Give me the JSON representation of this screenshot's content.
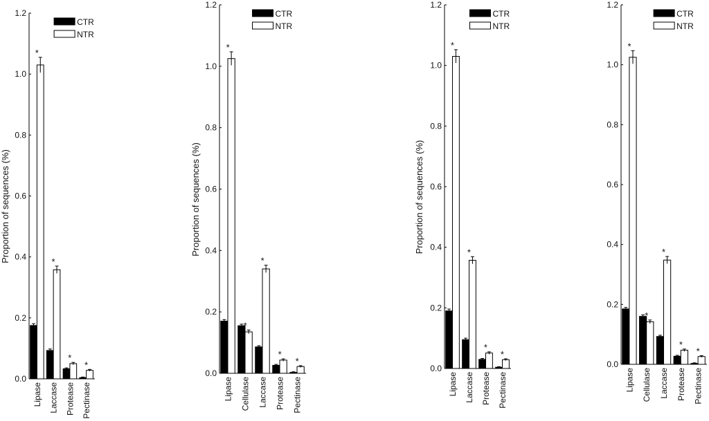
{
  "chart_data": [
    {
      "type": "bar",
      "ylabel": "Proportion of sequences (%)",
      "ylim": [
        0,
        1.2
      ],
      "yticks": [
        "0.0",
        "0.2",
        "0.4",
        "0.6",
        "0.8",
        "1.0",
        "1.2"
      ],
      "categories": [
        "Lipase",
        "Laccase",
        "Protease",
        "Pectinase"
      ],
      "series": [
        {
          "name": "CTR",
          "color": "#000000",
          "values": [
            0.175,
            0.093,
            0.033,
            0.004
          ],
          "errors": [
            0.006,
            0.005,
            0.003,
            0.002
          ]
        },
        {
          "name": "NTR",
          "color": "#ffffff",
          "values": [
            1.03,
            0.358,
            0.05,
            0.028
          ],
          "errors": [
            0.025,
            0.012,
            0.004,
            0.003
          ]
        }
      ],
      "significance": [
        "*",
        "*",
        "*",
        "*"
      ],
      "legend": "top-right"
    },
    {
      "type": "bar",
      "ylabel": "Proportion of sequences (%)",
      "ylim": [
        0,
        1.2
      ],
      "yticks": [
        "0.0",
        "0.2",
        "0.4",
        "0.6",
        "0.8",
        "1.0",
        "1.2"
      ],
      "categories": [
        "Lipase",
        "Cellulase",
        "Laccase",
        "Protease",
        "Pectinase"
      ],
      "series": [
        {
          "name": "CTR",
          "color": "#000000",
          "values": [
            0.17,
            0.155,
            0.086,
            0.026,
            0.003
          ],
          "errors": [
            0.005,
            0.005,
            0.004,
            0.003,
            0.002
          ]
        },
        {
          "name": "NTR",
          "color": "#ffffff",
          "values": [
            1.025,
            0.135,
            0.34,
            0.043,
            0.022
          ],
          "errors": [
            0.022,
            0.006,
            0.012,
            0.004,
            0.003
          ]
        }
      ],
      "significance": [
        "*",
        "*",
        "*",
        "*",
        "*"
      ],
      "legend": "top-right"
    },
    {
      "type": "bar",
      "ylabel": "Proportion of sequences (%)",
      "ylim": [
        0,
        1.2
      ],
      "yticks": [
        "0.0",
        "0.2",
        "0.4",
        "0.6",
        "0.8",
        "1.0",
        "1.2"
      ],
      "categories": [
        "Lipase",
        "Laccase",
        "Protease",
        "Pectinase"
      ],
      "series": [
        {
          "name": "CTR",
          "color": "#000000",
          "values": [
            0.19,
            0.095,
            0.03,
            0.004
          ],
          "errors": [
            0.006,
            0.005,
            0.003,
            0.002
          ]
        },
        {
          "name": "NTR",
          "color": "#ffffff",
          "values": [
            1.03,
            0.357,
            0.051,
            0.029
          ],
          "errors": [
            0.022,
            0.012,
            0.004,
            0.003
          ]
        }
      ],
      "significance": [
        "*",
        "*",
        "*",
        "*"
      ],
      "legend": "top-right"
    },
    {
      "type": "bar",
      "ylabel": "",
      "ylim": [
        0,
        1.2
      ],
      "yticks": [
        "0.0",
        "0.2",
        "0.4",
        "0.6",
        "0.8",
        "1.0",
        "1.2"
      ],
      "categories": [
        "Lipase",
        "Cellulase",
        "Laccase",
        "Protease",
        "Pectinase"
      ],
      "series": [
        {
          "name": "CTR",
          "color": "#000000",
          "values": [
            0.185,
            0.16,
            0.093,
            0.027,
            0.003
          ],
          "errors": [
            0.005,
            0.005,
            0.004,
            0.003,
            0.002
          ]
        },
        {
          "name": "NTR",
          "color": "#ffffff",
          "values": [
            1.025,
            0.142,
            0.348,
            0.047,
            0.026
          ],
          "errors": [
            0.022,
            0.006,
            0.012,
            0.004,
            0.003
          ]
        }
      ],
      "significance": [
        "*",
        "*",
        "*",
        "*",
        "*"
      ],
      "legend": "top-right"
    }
  ]
}
